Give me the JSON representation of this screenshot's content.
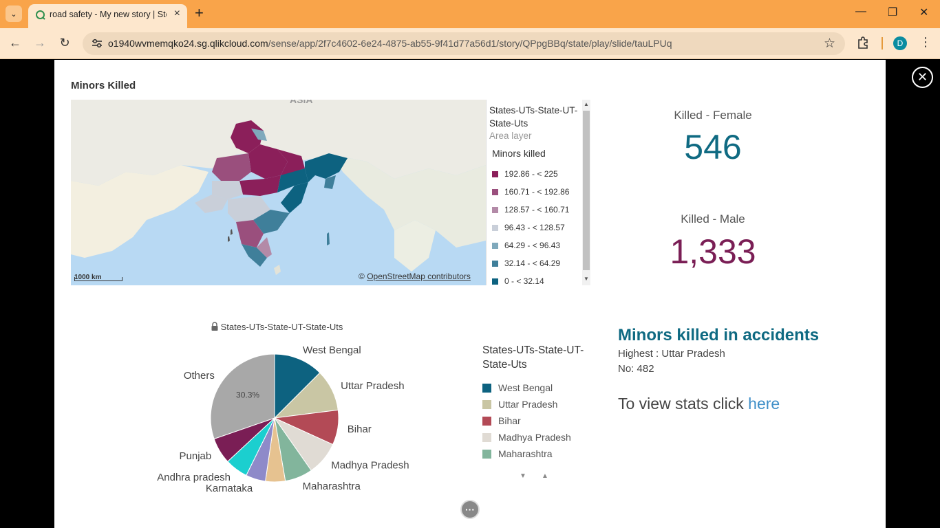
{
  "browser": {
    "tab_title": "road safety - My new story | Stor",
    "url_host": "o1940wvmemqko24.sg.qlikcloud.com",
    "url_path": "/sense/app/2f7c4602-6e24-4875-ab55-9f41d77a56d1/story/QPpgBBq/state/play/slide/tauLPUq",
    "profile_initial": "D"
  },
  "map": {
    "title": "Minors Killed",
    "region_label": "ASIA",
    "legend_title": "States-UTs-State-UT-State-Uts",
    "legend_layer": "Area layer",
    "legend_measure": "Minors killed",
    "legend_items": [
      {
        "label": "192.86 - < 225",
        "color": "#8b1f5a"
      },
      {
        "label": "160.71 - < 192.86",
        "color": "#9a4f7d"
      },
      {
        "label": "128.57 - < 160.71",
        "color": "#b38aa7"
      },
      {
        "label": "96.43 - < 128.57",
        "color": "#c9cfd9"
      },
      {
        "label": "64.29 - < 96.43",
        "color": "#7fa9bc"
      },
      {
        "label": "32.14 - < 64.29",
        "color": "#3f7f9a"
      },
      {
        "label": "0 - < 32.14",
        "color": "#0d6280"
      }
    ],
    "attribution_prefix": "© ",
    "attribution_link": "OpenStreetMap contributors",
    "scale_label": "1000 km"
  },
  "kpis": {
    "female_label": "Killed - Female",
    "female_value": "546",
    "female_color": "#0f6a82",
    "male_label": "Killed - Male",
    "male_value": "1,333",
    "male_color": "#7a1e55"
  },
  "chart_data": {
    "type": "pie",
    "title": "States-UTs-State-UT-State-Uts",
    "slices": [
      {
        "name": "West Bengal",
        "value": 12.5,
        "color": "#0d6280"
      },
      {
        "name": "Uttar Pradesh",
        "value": 10.5,
        "color": "#c9c6a4"
      },
      {
        "name": "Bihar",
        "value": 8.8,
        "color": "#b34a56"
      },
      {
        "name": "Madhya Pradesh",
        "value": 8.5,
        "color": "#e0dbd4"
      },
      {
        "name": "Maharashtra",
        "value": 7.0,
        "color": "#82b59c"
      },
      {
        "name": "",
        "value": 5.0,
        "color": "#e6c290"
      },
      {
        "name": "Karnataka",
        "value": 5.0,
        "color": "#8e8ac9"
      },
      {
        "name": "Andhra pradesh",
        "value": 5.8,
        "color": "#1bcfcf"
      },
      {
        "name": "Punjab",
        "value": 6.6,
        "color": "#7a1e55"
      },
      {
        "name": "Others",
        "value": 30.3,
        "color": "#a8a8a8"
      }
    ],
    "others_percent_label": "30.3%"
  },
  "pie_legend": {
    "title": "States-UTs-State-UT-State-Uts",
    "items": [
      {
        "label": "West Bengal",
        "color": "#0d6280"
      },
      {
        "label": "Uttar Pradesh",
        "color": "#c9c6a4"
      },
      {
        "label": "Bihar",
        "color": "#b34a56"
      },
      {
        "label": "Madhya Pradesh",
        "color": "#e0dbd4"
      },
      {
        "label": "Maharashtra",
        "color": "#82b59c"
      }
    ]
  },
  "textbox": {
    "heading": "Minors killed in accidents",
    "line1": "Highest : Uttar Pradesh",
    "line2": "No: 482",
    "view_prefix": "To view stats click ",
    "view_link": "here"
  }
}
